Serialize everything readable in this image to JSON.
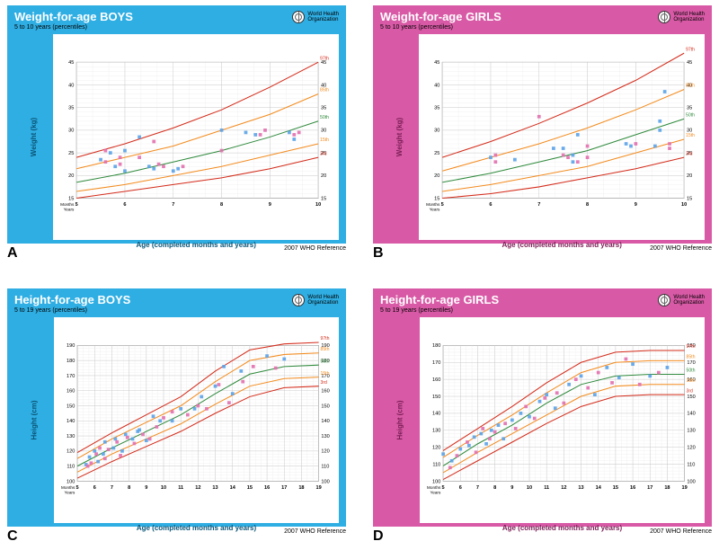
{
  "who_label": "World Health\nOrganization",
  "reference": "2007 WHO Reference",
  "percentile_colors": {
    "97th": "#d42b1a",
    "85th": "#f38b1e",
    "50th": "#2f8a3c",
    "15th": "#f38b1e",
    "3rd": "#d42b1a"
  },
  "marker_colors": {
    "a": "#5aa2e8",
    "b": "#e26fae"
  },
  "grid_color": "#c9c9c9",
  "grid_minor": "#e6e6e6",
  "font_main": "Arial",
  "months_label": "Months\nYears",
  "panels": [
    {
      "id": "A",
      "letter": "A",
      "variant": "boys",
      "title": "Weight-for-age  BOYS",
      "subtitle": "5 to 10 years (percentiles)",
      "ylabel": "Weight (kg)",
      "xlabel": "Age (completed months and years)",
      "xlim": [
        5,
        10
      ],
      "xstep": 1,
      "ylim": [
        15,
        45
      ],
      "ystep": 5,
      "curves": {
        "97th": [
          [
            5,
            24
          ],
          [
            6,
            27
          ],
          [
            7,
            30.5
          ],
          [
            8,
            34.5
          ],
          [
            9,
            39.5
          ],
          [
            10,
            45
          ]
        ],
        "85th": [
          [
            5,
            21.5
          ],
          [
            6,
            24
          ],
          [
            7,
            26.5
          ],
          [
            8,
            30
          ],
          [
            9,
            33.5
          ],
          [
            10,
            38
          ]
        ],
        "50th": [
          [
            5,
            18.5
          ],
          [
            6,
            20.5
          ],
          [
            7,
            23
          ],
          [
            8,
            25.5
          ],
          [
            9,
            28.5
          ],
          [
            10,
            32
          ]
        ],
        "15th": [
          [
            5,
            16.5
          ],
          [
            6,
            18
          ],
          [
            7,
            20
          ],
          [
            8,
            22
          ],
          [
            9,
            24.5
          ],
          [
            10,
            27
          ]
        ],
        "3rd": [
          [
            5,
            15
          ],
          [
            6,
            16.5
          ],
          [
            7,
            18
          ],
          [
            8,
            19.5
          ],
          [
            9,
            21.5
          ],
          [
            10,
            24
          ]
        ]
      },
      "points_a": [
        [
          5.5,
          23.5
        ],
        [
          5.7,
          25
        ],
        [
          5.8,
          22
        ],
        [
          6.0,
          25.5
        ],
        [
          6.0,
          21
        ],
        [
          6.3,
          28.5
        ],
        [
          6.5,
          22
        ],
        [
          6.6,
          21.5
        ],
        [
          7.0,
          21
        ],
        [
          7.1,
          21.5
        ],
        [
          8.0,
          30
        ],
        [
          8.5,
          29.5
        ],
        [
          8.7,
          29
        ],
        [
          9.4,
          29.5
        ],
        [
          9.5,
          28
        ]
      ],
      "points_b": [
        [
          5.6,
          23
        ],
        [
          5.6,
          25.5
        ],
        [
          5.9,
          22.5
        ],
        [
          5.9,
          24
        ],
        [
          6.3,
          24
        ],
        [
          6.6,
          27.5
        ],
        [
          6.7,
          22.5
        ],
        [
          6.8,
          22
        ],
        [
          7.2,
          22
        ],
        [
          8.0,
          25.5
        ],
        [
          8.8,
          29
        ],
        [
          8.9,
          30
        ],
        [
          9.5,
          29
        ],
        [
          9.6,
          29.5
        ]
      ]
    },
    {
      "id": "B",
      "letter": "B",
      "variant": "girls",
      "title": "Weight-for-age  GIRLS",
      "subtitle": "5 to 10 years (percentiles)",
      "ylabel": "Weight (kg)",
      "xlabel": "Age (completed months and years)",
      "xlim": [
        5,
        10
      ],
      "xstep": 1,
      "ylim": [
        15,
        45
      ],
      "ystep": 5,
      "curves": {
        "97th": [
          [
            5,
            24
          ],
          [
            6,
            27.5
          ],
          [
            7,
            31.5
          ],
          [
            8,
            36
          ],
          [
            9,
            41
          ],
          [
            10,
            47
          ]
        ],
        "85th": [
          [
            5,
            21
          ],
          [
            6,
            24
          ],
          [
            7,
            27
          ],
          [
            8,
            30.5
          ],
          [
            9,
            34.5
          ],
          [
            10,
            39
          ]
        ],
        "50th": [
          [
            5,
            18.5
          ],
          [
            6,
            20.5
          ],
          [
            7,
            23
          ],
          [
            8,
            25.5
          ],
          [
            9,
            29
          ],
          [
            10,
            32.5
          ]
        ],
        "15th": [
          [
            5,
            16.5
          ],
          [
            6,
            18
          ],
          [
            7,
            20
          ],
          [
            8,
            22
          ],
          [
            9,
            25
          ],
          [
            10,
            28
          ]
        ],
        "3rd": [
          [
            5,
            15
          ],
          [
            6,
            16
          ],
          [
            7,
            17.5
          ],
          [
            8,
            19.5
          ],
          [
            9,
            21.5
          ],
          [
            10,
            24
          ]
        ]
      },
      "points_a": [
        [
          6.0,
          24
        ],
        [
          6.5,
          23.5
        ],
        [
          7.3,
          26
        ],
        [
          7.5,
          26
        ],
        [
          7.7,
          24.5
        ],
        [
          7.7,
          23
        ],
        [
          7.8,
          29
        ],
        [
          8.8,
          27
        ],
        [
          8.9,
          26.5
        ],
        [
          9.4,
          26.5
        ],
        [
          9.5,
          30
        ],
        [
          9.5,
          32
        ],
        [
          9.6,
          38.5
        ]
      ],
      "points_b": [
        [
          6.1,
          23
        ],
        [
          6.1,
          24.5
        ],
        [
          7.0,
          33
        ],
        [
          7.5,
          24.5
        ],
        [
          7.6,
          24
        ],
        [
          7.8,
          23
        ],
        [
          8.0,
          26.5
        ],
        [
          8.0,
          24
        ],
        [
          9.0,
          27
        ],
        [
          9.7,
          26
        ],
        [
          9.7,
          27
        ]
      ]
    },
    {
      "id": "C",
      "letter": "C",
      "variant": "boys",
      "title": "Height-for-age  BOYS",
      "subtitle": "5 to 19 years (percentiles)",
      "ylabel": "Height (cm)",
      "xlabel": "Age (completed months and years)",
      "xlim": [
        5,
        19
      ],
      "xstep": 1,
      "ylim": [
        100,
        190
      ],
      "ystep": 10,
      "curves": {
        "97th": [
          [
            5,
            119
          ],
          [
            7,
            132
          ],
          [
            9,
            144
          ],
          [
            11,
            156
          ],
          [
            13,
            173
          ],
          [
            15,
            187
          ],
          [
            17,
            191
          ],
          [
            19,
            192
          ]
        ],
        "85th": [
          [
            5,
            115
          ],
          [
            7,
            128
          ],
          [
            9,
            139
          ],
          [
            11,
            150
          ],
          [
            13,
            166
          ],
          [
            15,
            180
          ],
          [
            17,
            184
          ],
          [
            19,
            185
          ]
        ],
        "50th": [
          [
            5,
            110
          ],
          [
            7,
            122
          ],
          [
            9,
            133
          ],
          [
            11,
            144
          ],
          [
            13,
            158
          ],
          [
            15,
            171
          ],
          [
            17,
            176
          ],
          [
            19,
            177
          ]
        ],
        "15th": [
          [
            5,
            106
          ],
          [
            7,
            118
          ],
          [
            9,
            128
          ],
          [
            11,
            138
          ],
          [
            13,
            151
          ],
          [
            15,
            163
          ],
          [
            17,
            168
          ],
          [
            19,
            169
          ]
        ],
        "3rd": [
          [
            5,
            102
          ],
          [
            7,
            113
          ],
          [
            9,
            123
          ],
          [
            11,
            133
          ],
          [
            13,
            145
          ],
          [
            15,
            156
          ],
          [
            17,
            162
          ],
          [
            19,
            163
          ]
        ]
      },
      "points_a": [
        [
          5.5,
          111
        ],
        [
          5.7,
          116
        ],
        [
          6.0,
          120
        ],
        [
          6.2,
          113
        ],
        [
          6.5,
          118
        ],
        [
          6.6,
          126
        ],
        [
          7.1,
          122
        ],
        [
          7.2,
          128
        ],
        [
          7.6,
          120
        ],
        [
          7.8,
          131
        ],
        [
          8.2,
          128
        ],
        [
          8.5,
          133
        ],
        [
          8.6,
          134
        ],
        [
          9.0,
          127
        ],
        [
          9.4,
          143
        ],
        [
          9.8,
          140
        ],
        [
          10.5,
          140
        ],
        [
          11.0,
          148
        ],
        [
          11.8,
          148
        ],
        [
          12.2,
          156
        ],
        [
          13.0,
          163
        ],
        [
          13.5,
          176
        ],
        [
          14.0,
          158
        ],
        [
          14.5,
          173
        ],
        [
          16.0,
          183
        ],
        [
          17.0,
          181
        ]
      ],
      "points_b": [
        [
          5.6,
          110
        ],
        [
          5.8,
          112
        ],
        [
          6.1,
          118
        ],
        [
          6.3,
          122
        ],
        [
          6.6,
          115
        ],
        [
          6.8,
          121
        ],
        [
          7.3,
          126
        ],
        [
          7.5,
          117
        ],
        [
          7.9,
          129
        ],
        [
          8.3,
          125
        ],
        [
          8.8,
          131
        ],
        [
          9.2,
          128
        ],
        [
          9.6,
          136
        ],
        [
          10.0,
          142
        ],
        [
          10.5,
          146
        ],
        [
          11.4,
          144
        ],
        [
          12.0,
          150
        ],
        [
          12.5,
          148
        ],
        [
          13.2,
          164
        ],
        [
          13.8,
          152
        ],
        [
          14.6,
          166
        ],
        [
          15.2,
          176
        ],
        [
          16.5,
          175
        ]
      ]
    },
    {
      "id": "D",
      "letter": "D",
      "variant": "girls",
      "title": "Height-for-age  GIRLS",
      "subtitle": "5 to 19 years (percentiles)",
      "ylabel": "Height (cm)",
      "xlabel": "Age (completed months and years)",
      "xlim": [
        5,
        19
      ],
      "xstep": 1,
      "ylim": [
        100,
        180
      ],
      "ystep": 10,
      "curves": {
        "97th": [
          [
            5,
            118
          ],
          [
            7,
            131
          ],
          [
            9,
            144
          ],
          [
            11,
            158
          ],
          [
            13,
            170
          ],
          [
            15,
            176
          ],
          [
            17,
            177
          ],
          [
            19,
            177
          ]
        ],
        "85th": [
          [
            5,
            114
          ],
          [
            7,
            127
          ],
          [
            9,
            139
          ],
          [
            11,
            152
          ],
          [
            13,
            164
          ],
          [
            15,
            170
          ],
          [
            17,
            171
          ],
          [
            19,
            171
          ]
        ],
        "50th": [
          [
            5,
            109
          ],
          [
            7,
            122
          ],
          [
            9,
            133
          ],
          [
            11,
            146
          ],
          [
            13,
            157
          ],
          [
            15,
            162
          ],
          [
            17,
            163
          ],
          [
            19,
            163
          ]
        ],
        "15th": [
          [
            5,
            105
          ],
          [
            7,
            117
          ],
          [
            9,
            128
          ],
          [
            11,
            139
          ],
          [
            13,
            150
          ],
          [
            15,
            156
          ],
          [
            17,
            157
          ],
          [
            19,
            157
          ]
        ],
        "3rd": [
          [
            5,
            101
          ],
          [
            7,
            112
          ],
          [
            9,
            123
          ],
          [
            11,
            134
          ],
          [
            13,
            144
          ],
          [
            15,
            150
          ],
          [
            17,
            151
          ],
          [
            19,
            151
          ]
        ]
      },
      "points_a": [
        [
          5.0,
          116
        ],
        [
          5.5,
          112
        ],
        [
          6.0,
          119
        ],
        [
          6.5,
          121
        ],
        [
          6.8,
          126
        ],
        [
          7.2,
          128
        ],
        [
          7.5,
          122
        ],
        [
          7.8,
          130
        ],
        [
          8.2,
          133
        ],
        [
          8.5,
          125
        ],
        [
          9.0,
          136
        ],
        [
          9.5,
          140
        ],
        [
          10.0,
          138
        ],
        [
          10.6,
          147
        ],
        [
          11.0,
          151
        ],
        [
          11.5,
          143
        ],
        [
          12.3,
          157
        ],
        [
          13.0,
          162
        ],
        [
          13.8,
          151
        ],
        [
          14.5,
          167
        ],
        [
          15.2,
          161
        ],
        [
          16.0,
          169
        ],
        [
          17.0,
          162
        ],
        [
          18.0,
          167
        ]
      ],
      "points_b": [
        [
          5.4,
          108
        ],
        [
          5.8,
          115
        ],
        [
          6.4,
          123
        ],
        [
          6.9,
          117
        ],
        [
          7.3,
          131
        ],
        [
          7.7,
          125
        ],
        [
          8.0,
          129
        ],
        [
          8.6,
          134
        ],
        [
          9.2,
          131
        ],
        [
          9.8,
          144
        ],
        [
          10.3,
          137
        ],
        [
          10.9,
          149
        ],
        [
          11.6,
          152
        ],
        [
          12.0,
          146
        ],
        [
          12.7,
          160
        ],
        [
          13.4,
          155
        ],
        [
          14.0,
          164
        ],
        [
          14.8,
          158
        ],
        [
          15.6,
          172
        ],
        [
          16.4,
          157
        ],
        [
          17.5,
          164
        ]
      ]
    }
  ]
}
